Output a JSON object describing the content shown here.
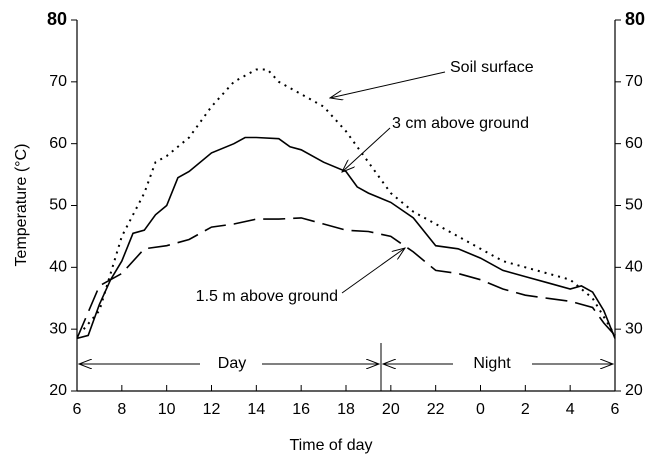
{
  "chart_data": {
    "type": "line",
    "x_label": "Time of day",
    "y_label": "Temperature (°C)",
    "xlim": [
      6,
      30
    ],
    "xticks": [
      6,
      8,
      10,
      12,
      14,
      16,
      18,
      20,
      22,
      {
        "value": 24,
        "label": "0"
      },
      {
        "value": 26,
        "label": "2"
      },
      {
        "value": 28,
        "label": "4"
      },
      {
        "value": 30,
        "label": "6"
      }
    ],
    "ylim": [
      20,
      80
    ],
    "yticks": [
      20,
      30,
      40,
      50,
      60,
      70,
      80
    ],
    "series": [
      {
        "name": "Soil surface",
        "color": "#000",
        "style": "dotted",
        "x": [
          6.3,
          7,
          8,
          9,
          9.5,
          10,
          11,
          12,
          13,
          14,
          14.5,
          15,
          16,
          17,
          18,
          19,
          20,
          21,
          22,
          23,
          24,
          25,
          26,
          27,
          28,
          29,
          29.5,
          30
        ],
        "values": [
          30,
          33,
          45,
          52,
          57,
          58,
          61,
          66,
          70,
          72,
          72,
          70,
          68,
          66,
          62,
          57,
          52,
          49,
          47,
          45,
          43,
          41,
          40,
          39,
          38,
          35,
          32,
          29
        ]
      },
      {
        "name": "3 cm above ground",
        "color": "#000",
        "style": "solid",
        "x": [
          6,
          6.5,
          7,
          7.5,
          8,
          8.5,
          9,
          9.5,
          10,
          10.5,
          11,
          12,
          13,
          13.5,
          14,
          15,
          15.5,
          16,
          17,
          18,
          18.5,
          19,
          20,
          21,
          22,
          23,
          24,
          25,
          26,
          27,
          28,
          28.5,
          29,
          29.5,
          30
        ],
        "values": [
          28.5,
          29,
          34,
          38,
          41,
          45.5,
          46,
          48.5,
          50,
          54.5,
          55.5,
          58.5,
          60,
          61,
          61,
          60.8,
          59.5,
          59,
          57,
          55.5,
          53,
          52,
          50.5,
          48,
          43.5,
          43,
          41.5,
          39.5,
          38.5,
          37.5,
          36.5,
          37,
          36,
          33,
          28.5
        ]
      },
      {
        "name": "1.5 m above ground",
        "color": "#000",
        "style": "dashed",
        "x": [
          6,
          7,
          8,
          9,
          10,
          11,
          12,
          13,
          14,
          15,
          16,
          17,
          18,
          19,
          20,
          21,
          22,
          23,
          24,
          25,
          26,
          27,
          28,
          29,
          29.5,
          30
        ],
        "values": [
          28.5,
          37,
          39,
          43,
          43.5,
          44.5,
          46.5,
          47,
          47.8,
          47.8,
          48,
          47,
          46,
          45.8,
          45,
          42.5,
          39.5,
          39,
          38,
          36.5,
          35.5,
          35,
          34.5,
          33.5,
          31,
          29
        ]
      }
    ],
    "annotations": [
      "Day",
      "Night"
    ]
  }
}
